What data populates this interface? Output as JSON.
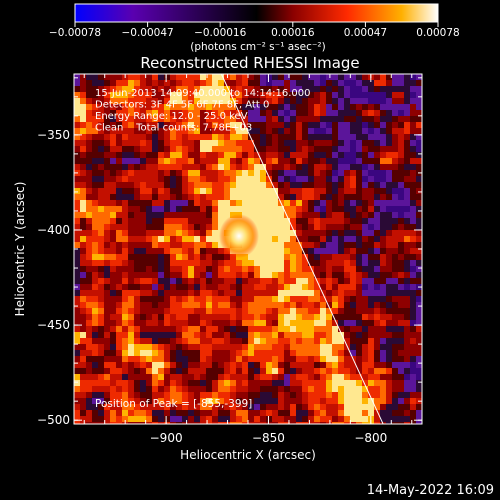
{
  "colorbar": {
    "tick_labels": [
      "-0.00078",
      "-0.00047",
      "-0.00016",
      "0.00016",
      "0.00047",
      "0.00078"
    ],
    "min": -0.00078,
    "max": 0.00078,
    "unit_label": "(photons cm⁻² s⁻¹ asec⁻²)",
    "colors": [
      "#0000ff",
      "#5a00b0",
      "#000000",
      "#8a0000",
      "#ff2a00",
      "#ffb000",
      "#ffffff"
    ]
  },
  "chart_data": {
    "type": "heatmap",
    "title": "Reconstructed RHESSI Image",
    "xlabel": "Heliocentric X (arcsec)",
    "ylabel": "Heliocentric Y (arcsec)",
    "xlim": [
      -945,
      -775
    ],
    "ylim": [
      -502,
      -318
    ],
    "x_ticks": [
      -900,
      -850,
      -800
    ],
    "y_ticks": [
      -350,
      -400,
      -450,
      -500
    ],
    "x_tick_labels": [
      "-900",
      "-850",
      "-800"
    ],
    "y_tick_labels": [
      "-350",
      "-400",
      "-450",
      "-500"
    ],
    "peak": {
      "x": -855,
      "y": -399
    },
    "limb_line": [
      [
        -873,
        -318
      ],
      [
        -794,
        -502
      ]
    ],
    "info_lines": [
      "15-Jun-2013 14:09:40.000 to 14:14:16.000",
      "Detectors: 3F 4F 5F 6F 7F 8F, Att 0",
      "Energy Range: 12.0 - 25.0 keV",
      "Clean    Total counts: 7.78E+03"
    ],
    "peak_text": "Position of Peak = [-855,-399]"
  },
  "footer": {
    "timestamp": "14-May-2022 16:09"
  }
}
